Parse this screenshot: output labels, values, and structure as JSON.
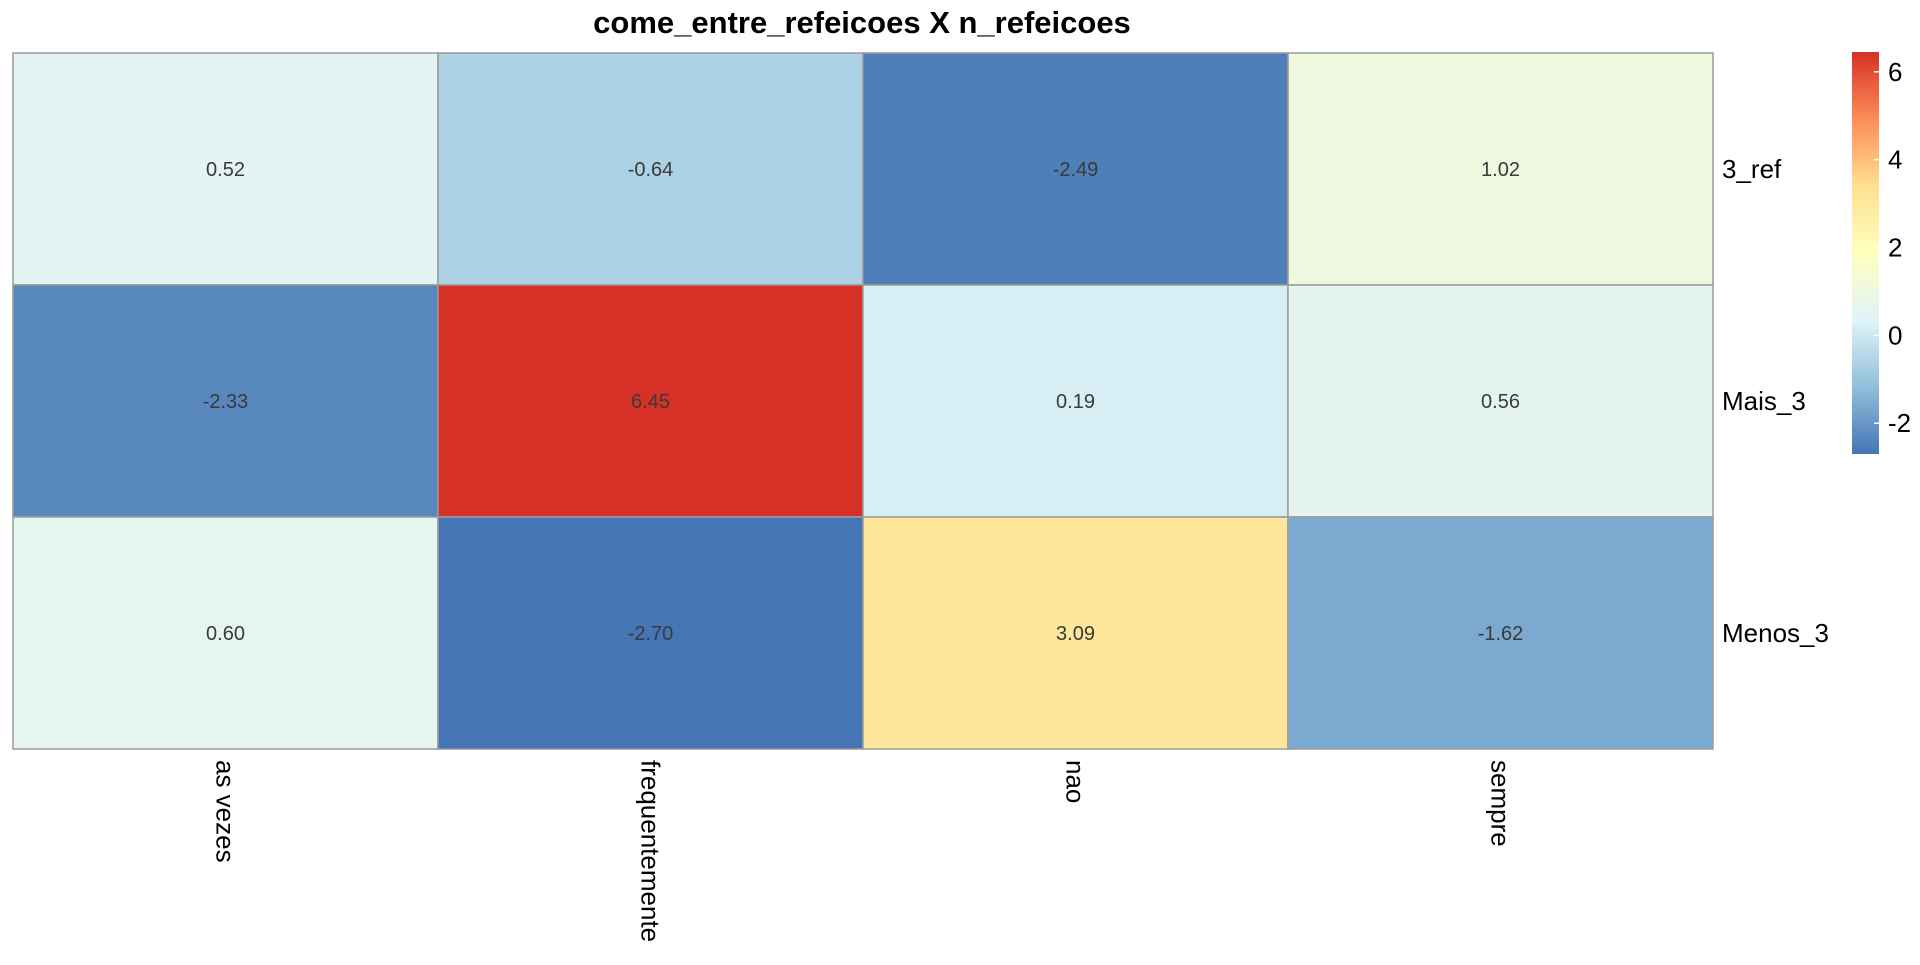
{
  "chart_data": {
    "type": "heatmap",
    "title": "come_entre_refeicoes X n_refeicoes",
    "columns": [
      "as vezes",
      "frequentemente",
      "nao",
      "sempre"
    ],
    "rows": [
      "3_ref",
      "Mais_3",
      "Menos_3"
    ],
    "values": [
      [
        0.52,
        -0.64,
        -2.49,
        1.02
      ],
      [
        -2.33,
        6.45,
        0.19,
        0.56
      ],
      [
        0.6,
        -2.7,
        3.09,
        -1.62
      ]
    ],
    "cell_labels": [
      [
        "0.52",
        "-0.64",
        "-2.49",
        "1.02"
      ],
      [
        "-2.33",
        "6.45",
        "0.19",
        "0.56"
      ],
      [
        "0.60",
        "-2.70",
        "3.09",
        "-1.62"
      ]
    ],
    "color_range": [
      -2.7,
      6.45
    ],
    "colorscale": [
      "#4575b4",
      "#91bfdb",
      "#e0f3f8",
      "#ffffbf",
      "#fee090",
      "#fc8d59",
      "#d73027"
    ],
    "legend": {
      "position": "right",
      "ticks": [
        -2,
        0,
        2,
        4,
        6
      ],
      "tick_labels": [
        "-2",
        "0",
        "2",
        "4",
        "6"
      ]
    },
    "grid": false
  }
}
